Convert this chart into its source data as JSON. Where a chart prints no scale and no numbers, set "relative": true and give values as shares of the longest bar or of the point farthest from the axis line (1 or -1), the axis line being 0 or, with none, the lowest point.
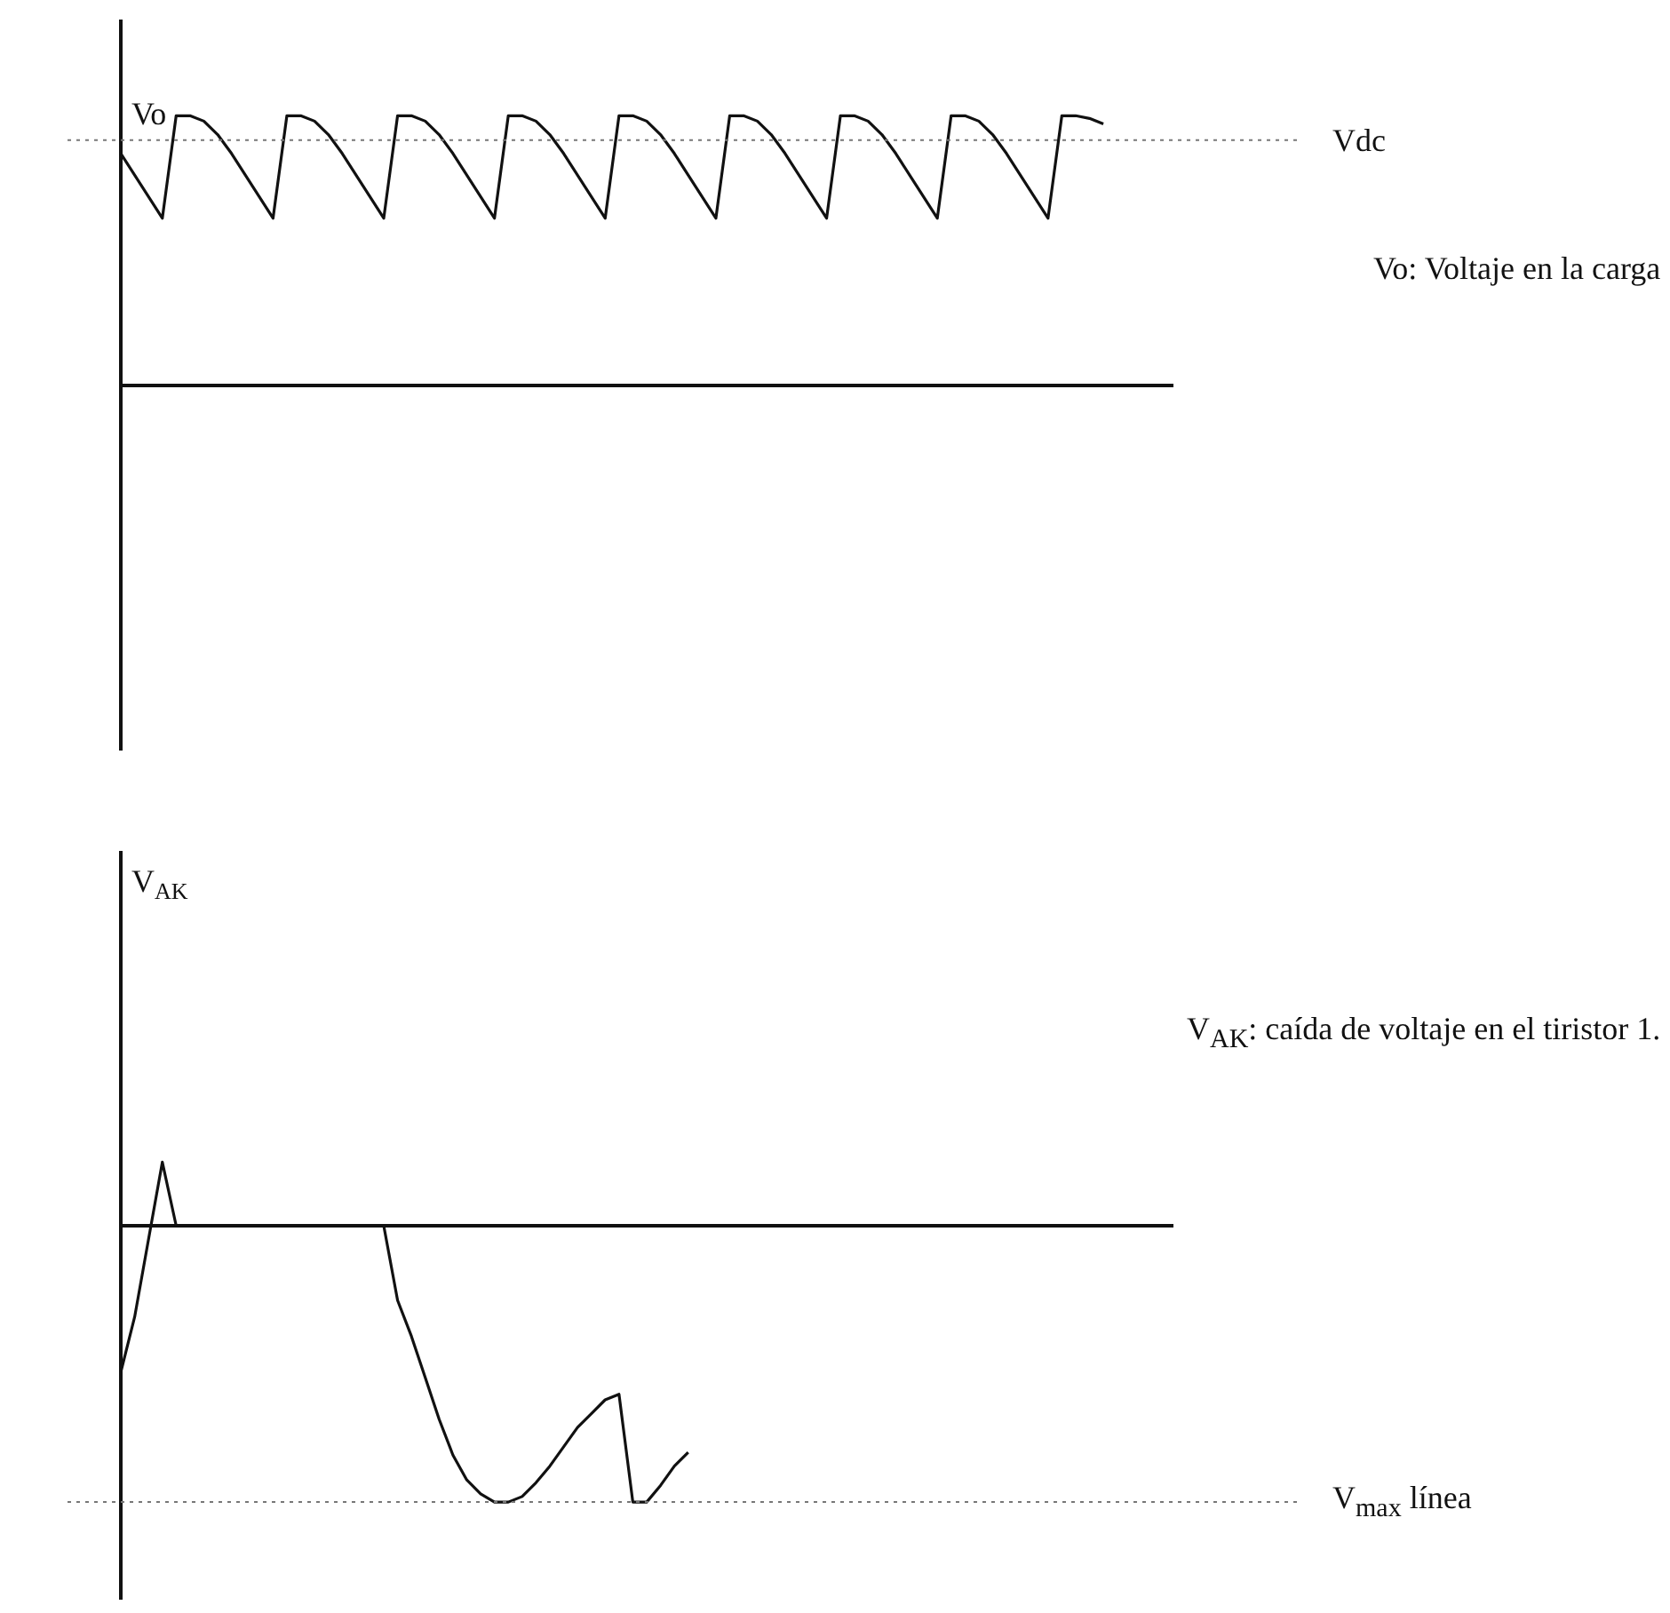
{
  "chart_data": [
    {
      "type": "line",
      "ylabel": "Vo",
      "relative": true,
      "grid": false,
      "categories": [
        null,
        null,
        null,
        null,
        null,
        null,
        null,
        null,
        null,
        null,
        null,
        null,
        null,
        null,
        null,
        null,
        null,
        null,
        null,
        null,
        null,
        null,
        null,
        null,
        null,
        null,
        null,
        null,
        null,
        null,
        null,
        null,
        null,
        null,
        null,
        null,
        null,
        null,
        null,
        null,
        null,
        null,
        null,
        null,
        null,
        null,
        null,
        null,
        null,
        null,
        null,
        null,
        null,
        null,
        null,
        null,
        null,
        null,
        null,
        null,
        null,
        null,
        null,
        null,
        null,
        null,
        null,
        null,
        null,
        null,
        null,
        null,
        null,
        null,
        null,
        null,
        null
      ],
      "series": [
        {
          "color": "#111111",
          "values": [
            0.86,
            0.78,
            0.7,
            0.62,
            1,
            1,
            0.98,
            0.93,
            0.86,
            0.78,
            0.7,
            0.62,
            1,
            1,
            0.98,
            0.93,
            0.86,
            0.78,
            0.7,
            0.62,
            1,
            1,
            0.98,
            0.93,
            0.86,
            0.78,
            0.7,
            0.62,
            1,
            1,
            0.98,
            0.93,
            0.86,
            0.78,
            0.7,
            0.62,
            1,
            1,
            0.98,
            0.93,
            0.86,
            0.78,
            0.7,
            0.62,
            1,
            1,
            0.98,
            0.93,
            0.86,
            0.78,
            0.7,
            0.62,
            1,
            1,
            0.98,
            0.93,
            0.86,
            0.78,
            0.7,
            0.62,
            1,
            1,
            0.98,
            0.93,
            0.86,
            0.78,
            0.7,
            0.62,
            1,
            1,
            0.99,
            0.97,
            null,
            null,
            null,
            null,
            null
          ]
        }
      ],
      "ref_lines": [
        {
          "axis": "y",
          "value": 0.91,
          "label": "Vdc",
          "color": "#777777",
          "line_style": "dotted"
        }
      ],
      "annotations": [
        "Vo: Voltaje en la carga"
      ]
    },
    {
      "type": "line",
      "ylabel": "V$_{AK}$",
      "relative": true,
      "grid": false,
      "categories": [
        null,
        null,
        null,
        null,
        null,
        null,
        null,
        null,
        null,
        null,
        null,
        null,
        null,
        null,
        null,
        null,
        null,
        null,
        null,
        null,
        null,
        null,
        null,
        null,
        null,
        null,
        null,
        null,
        null,
        null,
        null,
        null,
        null,
        null,
        null,
        null,
        null,
        null,
        null,
        null,
        null,
        null,
        null,
        null,
        null,
        null,
        null,
        null,
        null,
        null,
        null,
        null,
        null,
        null,
        null,
        null,
        null,
        null,
        null,
        null,
        null,
        null,
        null,
        null,
        null,
        null,
        null,
        null,
        null,
        null,
        null,
        null,
        null,
        null,
        null,
        null,
        null
      ],
      "series": [
        {
          "color": "#111111",
          "values": [
            -0.53,
            -0.33,
            -0.05,
            0.23,
            0,
            0,
            0,
            0,
            0,
            0,
            0,
            0,
            0,
            0,
            0,
            0,
            0,
            0,
            0,
            0,
            -0.27,
            -0.4,
            -0.55,
            -0.7,
            -0.83,
            -0.92,
            -0.97,
            -1,
            -1,
            -0.98,
            -0.93,
            -0.87,
            -0.8,
            -0.73,
            -0.68,
            -0.63,
            -0.61,
            -1,
            -1,
            -0.94,
            -0.87,
            -0.82,
            null,
            null,
            null,
            null,
            null,
            null,
            null,
            null,
            null,
            null,
            null,
            null,
            null,
            null,
            null,
            null,
            null,
            null,
            null,
            null,
            null,
            null,
            null,
            null,
            null,
            null,
            null,
            null,
            null,
            null,
            null,
            null,
            null,
            null,
            null
          ]
        }
      ],
      "ref_lines": [
        {
          "axis": "y",
          "value": -1,
          "label": "V$_{max}$ línea",
          "color": "#777777",
          "line_style": "dotted"
        }
      ],
      "annotations": [
        "V$_{AK}$: caída de voltaje en el tiristor 1."
      ]
    }
  ]
}
